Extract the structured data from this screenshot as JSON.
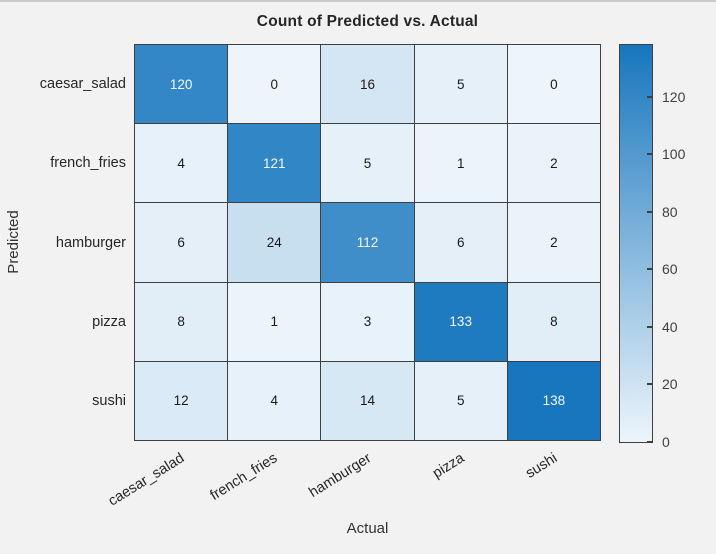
{
  "chart_data": {
    "type": "heatmap",
    "title": "Count of Predicted vs. Actual",
    "xlabel": "Actual",
    "ylabel": "Predicted",
    "row_labels": [
      "caesar_salad",
      "french_fries",
      "hamburger",
      "pizza",
      "sushi"
    ],
    "col_labels": [
      "caesar_salad",
      "french_fries",
      "hamburger",
      "pizza",
      "sushi"
    ],
    "values": [
      [
        120,
        0,
        16,
        5,
        0
      ],
      [
        4,
        121,
        5,
        1,
        2
      ],
      [
        6,
        24,
        112,
        6,
        2
      ],
      [
        8,
        1,
        3,
        133,
        8
      ],
      [
        12,
        4,
        14,
        5,
        138
      ]
    ],
    "color_scale": {
      "min": 0,
      "max": 138,
      "min_color": "#edf5fb",
      "max_color": "#1776be"
    },
    "colorbar_ticks": [
      0,
      20,
      40,
      60,
      80,
      100,
      120
    ],
    "legend_position": "right",
    "grid": true,
    "colors": {
      "figure_background": "#f2f2f2",
      "grid_line": "#3f3f3f",
      "text": "#262626",
      "cell_text_dark": "#1a1a1a",
      "cell_text_light": "#f5faff"
    }
  }
}
